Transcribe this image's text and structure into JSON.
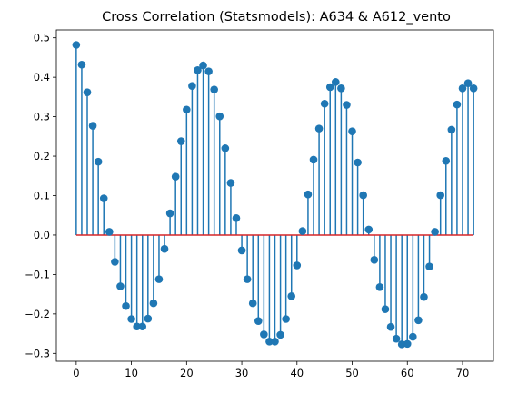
{
  "chart_data": {
    "type": "stem",
    "title": "Cross Correlation (Statsmodels): A634 & A612_vento",
    "xlabel": "",
    "ylabel": "",
    "xlim": [
      -3.6,
      75.6
    ],
    "ylim": [
      -0.32,
      0.52
    ],
    "xticks": [
      0,
      10,
      20,
      30,
      40,
      50,
      60,
      70
    ],
    "yticks": [
      -0.3,
      -0.2,
      -0.1,
      0.0,
      0.1,
      0.2,
      0.3,
      0.4,
      0.5
    ],
    "ytick_labels": [
      "−0.3",
      "−0.2",
      "−0.1",
      "0.0",
      "0.1",
      "0.2",
      "0.3",
      "0.4",
      "0.5"
    ],
    "baseline": 0.0,
    "stem_color": "#1f77b4",
    "baseline_color": "#d62728",
    "x": [
      0,
      1,
      2,
      3,
      4,
      5,
      6,
      7,
      8,
      9,
      10,
      11,
      12,
      13,
      14,
      15,
      16,
      17,
      18,
      19,
      20,
      21,
      22,
      23,
      24,
      25,
      26,
      27,
      28,
      29,
      30,
      31,
      32,
      33,
      34,
      35,
      36,
      37,
      38,
      39,
      40,
      41,
      42,
      43,
      44,
      45,
      46,
      47,
      48,
      49,
      50,
      51,
      52,
      53,
      54,
      55,
      56,
      57,
      58,
      59,
      60,
      61,
      62,
      63,
      64,
      65,
      66,
      67,
      68,
      69,
      70,
      71,
      72
    ],
    "values": [
      0.482,
      0.432,
      0.362,
      0.277,
      0.186,
      0.093,
      0.008,
      -0.068,
      -0.13,
      -0.18,
      -0.213,
      -0.232,
      -0.232,
      -0.212,
      -0.173,
      -0.112,
      -0.035,
      0.055,
      0.148,
      0.238,
      0.318,
      0.378,
      0.418,
      0.43,
      0.415,
      0.369,
      0.301,
      0.22,
      0.132,
      0.043,
      -0.039,
      -0.112,
      -0.173,
      -0.218,
      -0.252,
      -0.27,
      -0.27,
      -0.253,
      -0.213,
      -0.155,
      -0.077,
      0.01,
      0.103,
      0.191,
      0.27,
      0.333,
      0.375,
      0.388,
      0.372,
      0.33,
      0.263,
      0.184,
      0.101,
      0.014,
      -0.063,
      -0.132,
      -0.188,
      -0.233,
      -0.263,
      -0.277,
      -0.276,
      -0.258,
      -0.216,
      -0.157,
      -0.08,
      0.008,
      0.101,
      0.188,
      0.267,
      0.331,
      0.372,
      0.385,
      0.372
    ]
  }
}
